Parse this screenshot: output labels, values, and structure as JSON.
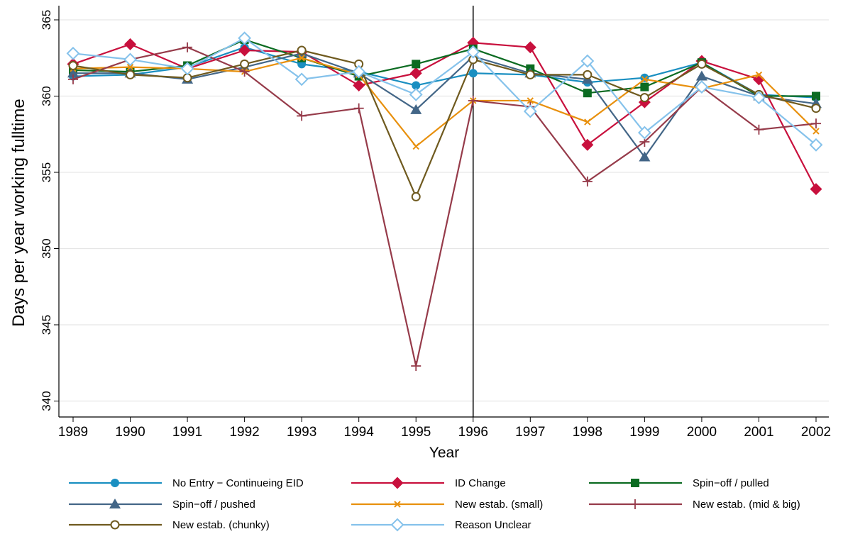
{
  "chart_data": {
    "type": "line",
    "xlabel": "Year",
    "ylabel": "Days per year working fulltime",
    "xlim": [
      1989,
      2002
    ],
    "ylim": [
      339.5,
      365.5
    ],
    "yticks": [
      340,
      345,
      350,
      355,
      360,
      365
    ],
    "x": [
      1989,
      1990,
      1991,
      1992,
      1993,
      1994,
      1995,
      1996,
      1997,
      1998,
      1999,
      2000,
      2001,
      2002
    ],
    "reference_line_x": 1996,
    "grid": "horizontal",
    "legend_position": "bottom",
    "series": [
      {
        "name": "No Entry − Continueing EID",
        "color": "#1a8fc1",
        "marker": "circle",
        "values": [
          361.3,
          361.4,
          361.9,
          363.2,
          362.1,
          361.6,
          360.7,
          361.5,
          361.4,
          360.9,
          361.2,
          362.2,
          360.1,
          359.9
        ]
      },
      {
        "name": "ID Change",
        "color": "#c8103d",
        "marker": "diamond",
        "values": [
          362.1,
          363.4,
          361.8,
          363.0,
          362.9,
          360.7,
          361.5,
          363.5,
          363.2,
          356.8,
          359.6,
          362.3,
          361.1,
          353.9
        ]
      },
      {
        "name": "Spin−off / pulled",
        "color": "#0b6b21",
        "marker": "square",
        "values": [
          361.7,
          361.6,
          362.0,
          363.7,
          362.5,
          361.3,
          362.1,
          363.1,
          361.8,
          360.2,
          360.6,
          362.2,
          360.0,
          360.0
        ]
      },
      {
        "name": "Spin−off / pushed",
        "color": "#436687",
        "marker": "triangle",
        "values": [
          361.5,
          361.5,
          361.1,
          361.9,
          362.8,
          361.5,
          359.1,
          362.6,
          361.5,
          361.1,
          356.0,
          361.3,
          360.0,
          359.5
        ]
      },
      {
        "name": "New estab. (small)",
        "color": "#e8900d",
        "marker": "x",
        "values": [
          361.8,
          361.9,
          361.8,
          361.6,
          362.5,
          361.4,
          356.7,
          359.7,
          359.7,
          358.3,
          361.1,
          360.5,
          361.4,
          357.7
        ]
      },
      {
        "name": "New estab. (mid & big)",
        "color": "#963b4a",
        "marker": "plus",
        "values": [
          361.1,
          362.4,
          363.2,
          361.6,
          358.7,
          359.2,
          342.3,
          359.7,
          359.3,
          354.4,
          357.0,
          360.6,
          357.8,
          358.2
        ]
      },
      {
        "name": "New estab. (chunky)",
        "color": "#6f5a1f",
        "marker": "hollow-circle",
        "values": [
          362.0,
          361.4,
          361.2,
          362.1,
          363.0,
          362.1,
          353.4,
          362.4,
          361.4,
          361.4,
          359.9,
          362.1,
          360.1,
          359.2
        ]
      },
      {
        "name": "Reason Unclear",
        "color": "#85c2eb",
        "marker": "hollow-diamond",
        "values": [
          362.8,
          362.4,
          361.8,
          363.8,
          361.1,
          361.6,
          360.1,
          362.9,
          359.0,
          362.3,
          357.6,
          360.6,
          359.9,
          356.8
        ]
      }
    ]
  }
}
